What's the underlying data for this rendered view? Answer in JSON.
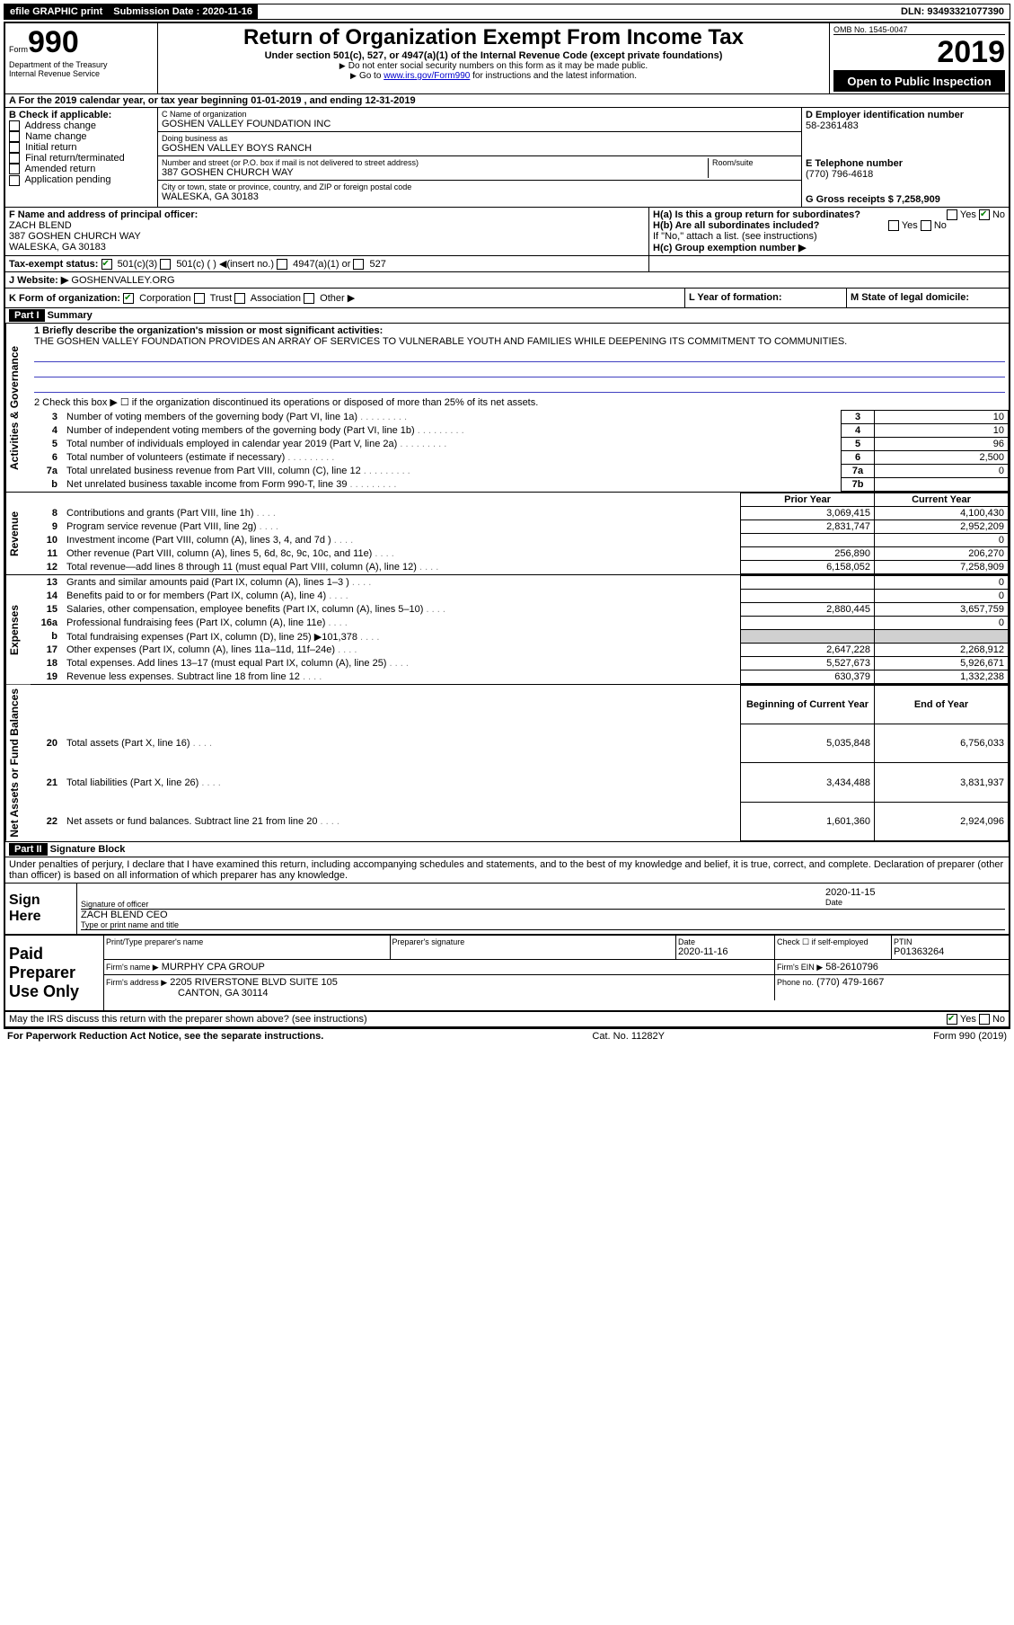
{
  "topbar": {
    "efile": "efile GRAPHIC print",
    "submission_label": "Submission Date :",
    "submission_date": "2020-11-16",
    "dln_label": "DLN:",
    "dln": "93493321077390"
  },
  "header": {
    "form_prefix": "Form",
    "form_number": "990",
    "dept": "Department of the Treasury\nInternal Revenue Service",
    "title": "Return of Organization Exempt From Income Tax",
    "subtitle": "Under section 501(c), 527, or 4947(a)(1) of the Internal Revenue Code (except private foundations)",
    "hint1": "Do not enter social security numbers on this form as it may be made public.",
    "hint2_pre": "Go to ",
    "hint2_link": "www.irs.gov/Form990",
    "hint2_post": " for instructions and the latest information.",
    "omb": "OMB No. 1545-0047",
    "year": "2019",
    "open_public": "Open to Public Inspection"
  },
  "period": {
    "line": "For the 2019 calendar year, or tax year beginning 01-01-2019   , and ending 12-31-2019"
  },
  "sectionB": {
    "label": "B Check if applicable:",
    "opts": [
      "Address change",
      "Name change",
      "Initial return",
      "Final return/terminated",
      "Amended return",
      "Application pending"
    ]
  },
  "sectionC": {
    "name_label": "C Name of organization",
    "name": "GOSHEN VALLEY FOUNDATION INC",
    "dba_label": "Doing business as",
    "dba": "GOSHEN VALLEY BOYS RANCH",
    "addr_label": "Number and street (or P.O. box if mail is not delivered to street address)",
    "room_label": "Room/suite",
    "addr": "387 GOSHEN CHURCH WAY",
    "city_label": "City or town, state or province, country, and ZIP or foreign postal code",
    "city": "WALESKA, GA  30183"
  },
  "sectionD": {
    "label": "D Employer identification number",
    "ein": "58-2361483"
  },
  "sectionE": {
    "label": "E Telephone number",
    "phone": "(770) 796-4618"
  },
  "sectionG": {
    "text": "G Gross receipts $ 7,258,909"
  },
  "sectionF": {
    "label": "F  Name and address of principal officer:",
    "name": "ZACH BLEND",
    "addr1": "387 GOSHEN CHURCH WAY",
    "addr2": "WALESKA, GA  30183"
  },
  "sectionH": {
    "a": "H(a)  Is this a group return for subordinates?",
    "b": "H(b)  Are all subordinates included?",
    "b_note": "If \"No,\" attach a list. (see instructions)",
    "c": "H(c)  Group exemption number ▶",
    "yes": "Yes",
    "no": "No"
  },
  "sectionI": {
    "label": "Tax-exempt status:",
    "opt1": "501(c)(3)",
    "opt2": "501(c) (  ) ◀(insert no.)",
    "opt3": "4947(a)(1) or",
    "opt4": "527"
  },
  "sectionJ": {
    "label": "J   Website: ▶",
    "val": "GOSHENVALLEY.ORG"
  },
  "sectionK": {
    "label": "K Form of organization:",
    "opts": [
      "Corporation",
      "Trust",
      "Association",
      "Other ▶"
    ]
  },
  "sectionL": {
    "label": "L Year of formation:"
  },
  "sectionM": {
    "label": "M State of legal domicile:"
  },
  "part1": {
    "hdr": "Part I",
    "title": "Summary",
    "q1": "1  Briefly describe the organization's mission or most significant activities:",
    "mission": "THE GOSHEN VALLEY FOUNDATION PROVIDES AN ARRAY OF SERVICES TO VULNERABLE YOUTH AND FAMILIES WHILE DEEPENING ITS COMMITMENT TO COMMUNITIES.",
    "q2": "2  Check this box ▶ ☐  if the organization discontinued its operations or disposed of more than 25% of its net assets.",
    "prior_hdr": "Prior Year",
    "current_hdr": "Current Year",
    "begin_hdr": "Beginning of Current Year",
    "end_hdr": "End of Year"
  },
  "lines_top": [
    {
      "n": "3",
      "d": "Number of voting members of the governing body (Part VI, line 1a)",
      "box": "3",
      "v": "10"
    },
    {
      "n": "4",
      "d": "Number of independent voting members of the governing body (Part VI, line 1b)",
      "box": "4",
      "v": "10"
    },
    {
      "n": "5",
      "d": "Total number of individuals employed in calendar year 2019 (Part V, line 2a)",
      "box": "5",
      "v": "96"
    },
    {
      "n": "6",
      "d": "Total number of volunteers (estimate if necessary)",
      "box": "6",
      "v": "2,500"
    },
    {
      "n": "7a",
      "d": "Total unrelated business revenue from Part VIII, column (C), line 12",
      "box": "7a",
      "v": "0"
    },
    {
      "n": "b",
      "d": "Net unrelated business taxable income from Form 990-T, line 39",
      "box": "7b",
      "v": ""
    }
  ],
  "revenue_lines": [
    {
      "n": "8",
      "d": "Contributions and grants (Part VIII, line 1h)",
      "py": "3,069,415",
      "cy": "4,100,430"
    },
    {
      "n": "9",
      "d": "Program service revenue (Part VIII, line 2g)",
      "py": "2,831,747",
      "cy": "2,952,209"
    },
    {
      "n": "10",
      "d": "Investment income (Part VIII, column (A), lines 3, 4, and 7d )",
      "py": "",
      "cy": "0"
    },
    {
      "n": "11",
      "d": "Other revenue (Part VIII, column (A), lines 5, 6d, 8c, 9c, 10c, and 11e)",
      "py": "256,890",
      "cy": "206,270"
    },
    {
      "n": "12",
      "d": "Total revenue—add lines 8 through 11 (must equal Part VIII, column (A), line 12)",
      "py": "6,158,052",
      "cy": "7,258,909"
    }
  ],
  "expense_lines": [
    {
      "n": "13",
      "d": "Grants and similar amounts paid (Part IX, column (A), lines 1–3 )",
      "py": "",
      "cy": "0"
    },
    {
      "n": "14",
      "d": "Benefits paid to or for members (Part IX, column (A), line 4)",
      "py": "",
      "cy": "0"
    },
    {
      "n": "15",
      "d": "Salaries, other compensation, employee benefits (Part IX, column (A), lines 5–10)",
      "py": "2,880,445",
      "cy": "3,657,759"
    },
    {
      "n": "16a",
      "d": "Professional fundraising fees (Part IX, column (A), line 11e)",
      "py": "",
      "cy": "0"
    },
    {
      "n": "b",
      "d": "Total fundraising expenses (Part IX, column (D), line 25) ▶101,378",
      "py": "shade",
      "cy": "shade"
    },
    {
      "n": "17",
      "d": "Other expenses (Part IX, column (A), lines 11a–11d, 11f–24e)",
      "py": "2,647,228",
      "cy": "2,268,912"
    },
    {
      "n": "18",
      "d": "Total expenses. Add lines 13–17 (must equal Part IX, column (A), line 25)",
      "py": "5,527,673",
      "cy": "5,926,671"
    },
    {
      "n": "19",
      "d": "Revenue less expenses. Subtract line 18 from line 12",
      "py": "630,379",
      "cy": "1,332,238"
    }
  ],
  "net_lines": [
    {
      "n": "20",
      "d": "Total assets (Part X, line 16)",
      "py": "5,035,848",
      "cy": "6,756,033"
    },
    {
      "n": "21",
      "d": "Total liabilities (Part X, line 26)",
      "py": "3,434,488",
      "cy": "3,831,937"
    },
    {
      "n": "22",
      "d": "Net assets or fund balances. Subtract line 21 from line 20",
      "py": "1,601,360",
      "cy": "2,924,096"
    }
  ],
  "side_labels": {
    "activities": "Activities & Governance",
    "revenue": "Revenue",
    "expenses": "Expenses",
    "net": "Net Assets or Fund Balances"
  },
  "part2": {
    "hdr": "Part II",
    "title": "Signature Block",
    "decl": "Under penalties of perjury, I declare that I have examined this return, including accompanying schedules and statements, and to the best of my knowledge and belief, it is true, correct, and complete. Declaration of preparer (other than officer) is based on all information of which preparer has any knowledge."
  },
  "sign": {
    "label": "Sign Here",
    "sig_of_officer": "Signature of officer",
    "date_label": "Date",
    "date": "2020-11-15",
    "name": "ZACH BLEND  CEO",
    "type_label": "Type or print name and title"
  },
  "paid": {
    "label": "Paid Preparer Use Only",
    "col1": "Print/Type preparer's name",
    "col2": "Preparer's signature",
    "col3": "Date",
    "date": "2020-11-16",
    "col4": "Check ☐ if self-employed",
    "col5_label": "PTIN",
    "ptin": "P01363264",
    "firm_name_label": "Firm's name   ▶",
    "firm_name": "MURPHY CPA GROUP",
    "firm_ein_label": "Firm's EIN ▶",
    "firm_ein": "58-2610796",
    "firm_addr_label": "Firm's address ▶",
    "firm_addr1": "2205 RIVERSTONE BLVD SUITE 105",
    "firm_addr2": "CANTON, GA  30114",
    "phone_label": "Phone no.",
    "phone": "(770) 479-1667"
  },
  "bottom": {
    "discuss": "May the IRS discuss this return with the preparer shown above? (see instructions)",
    "yes": "Yes",
    "no": "No",
    "paperwork": "For Paperwork Reduction Act Notice, see the separate instructions.",
    "cat": "Cat. No. 11282Y",
    "form": "Form 990 (2019)"
  }
}
